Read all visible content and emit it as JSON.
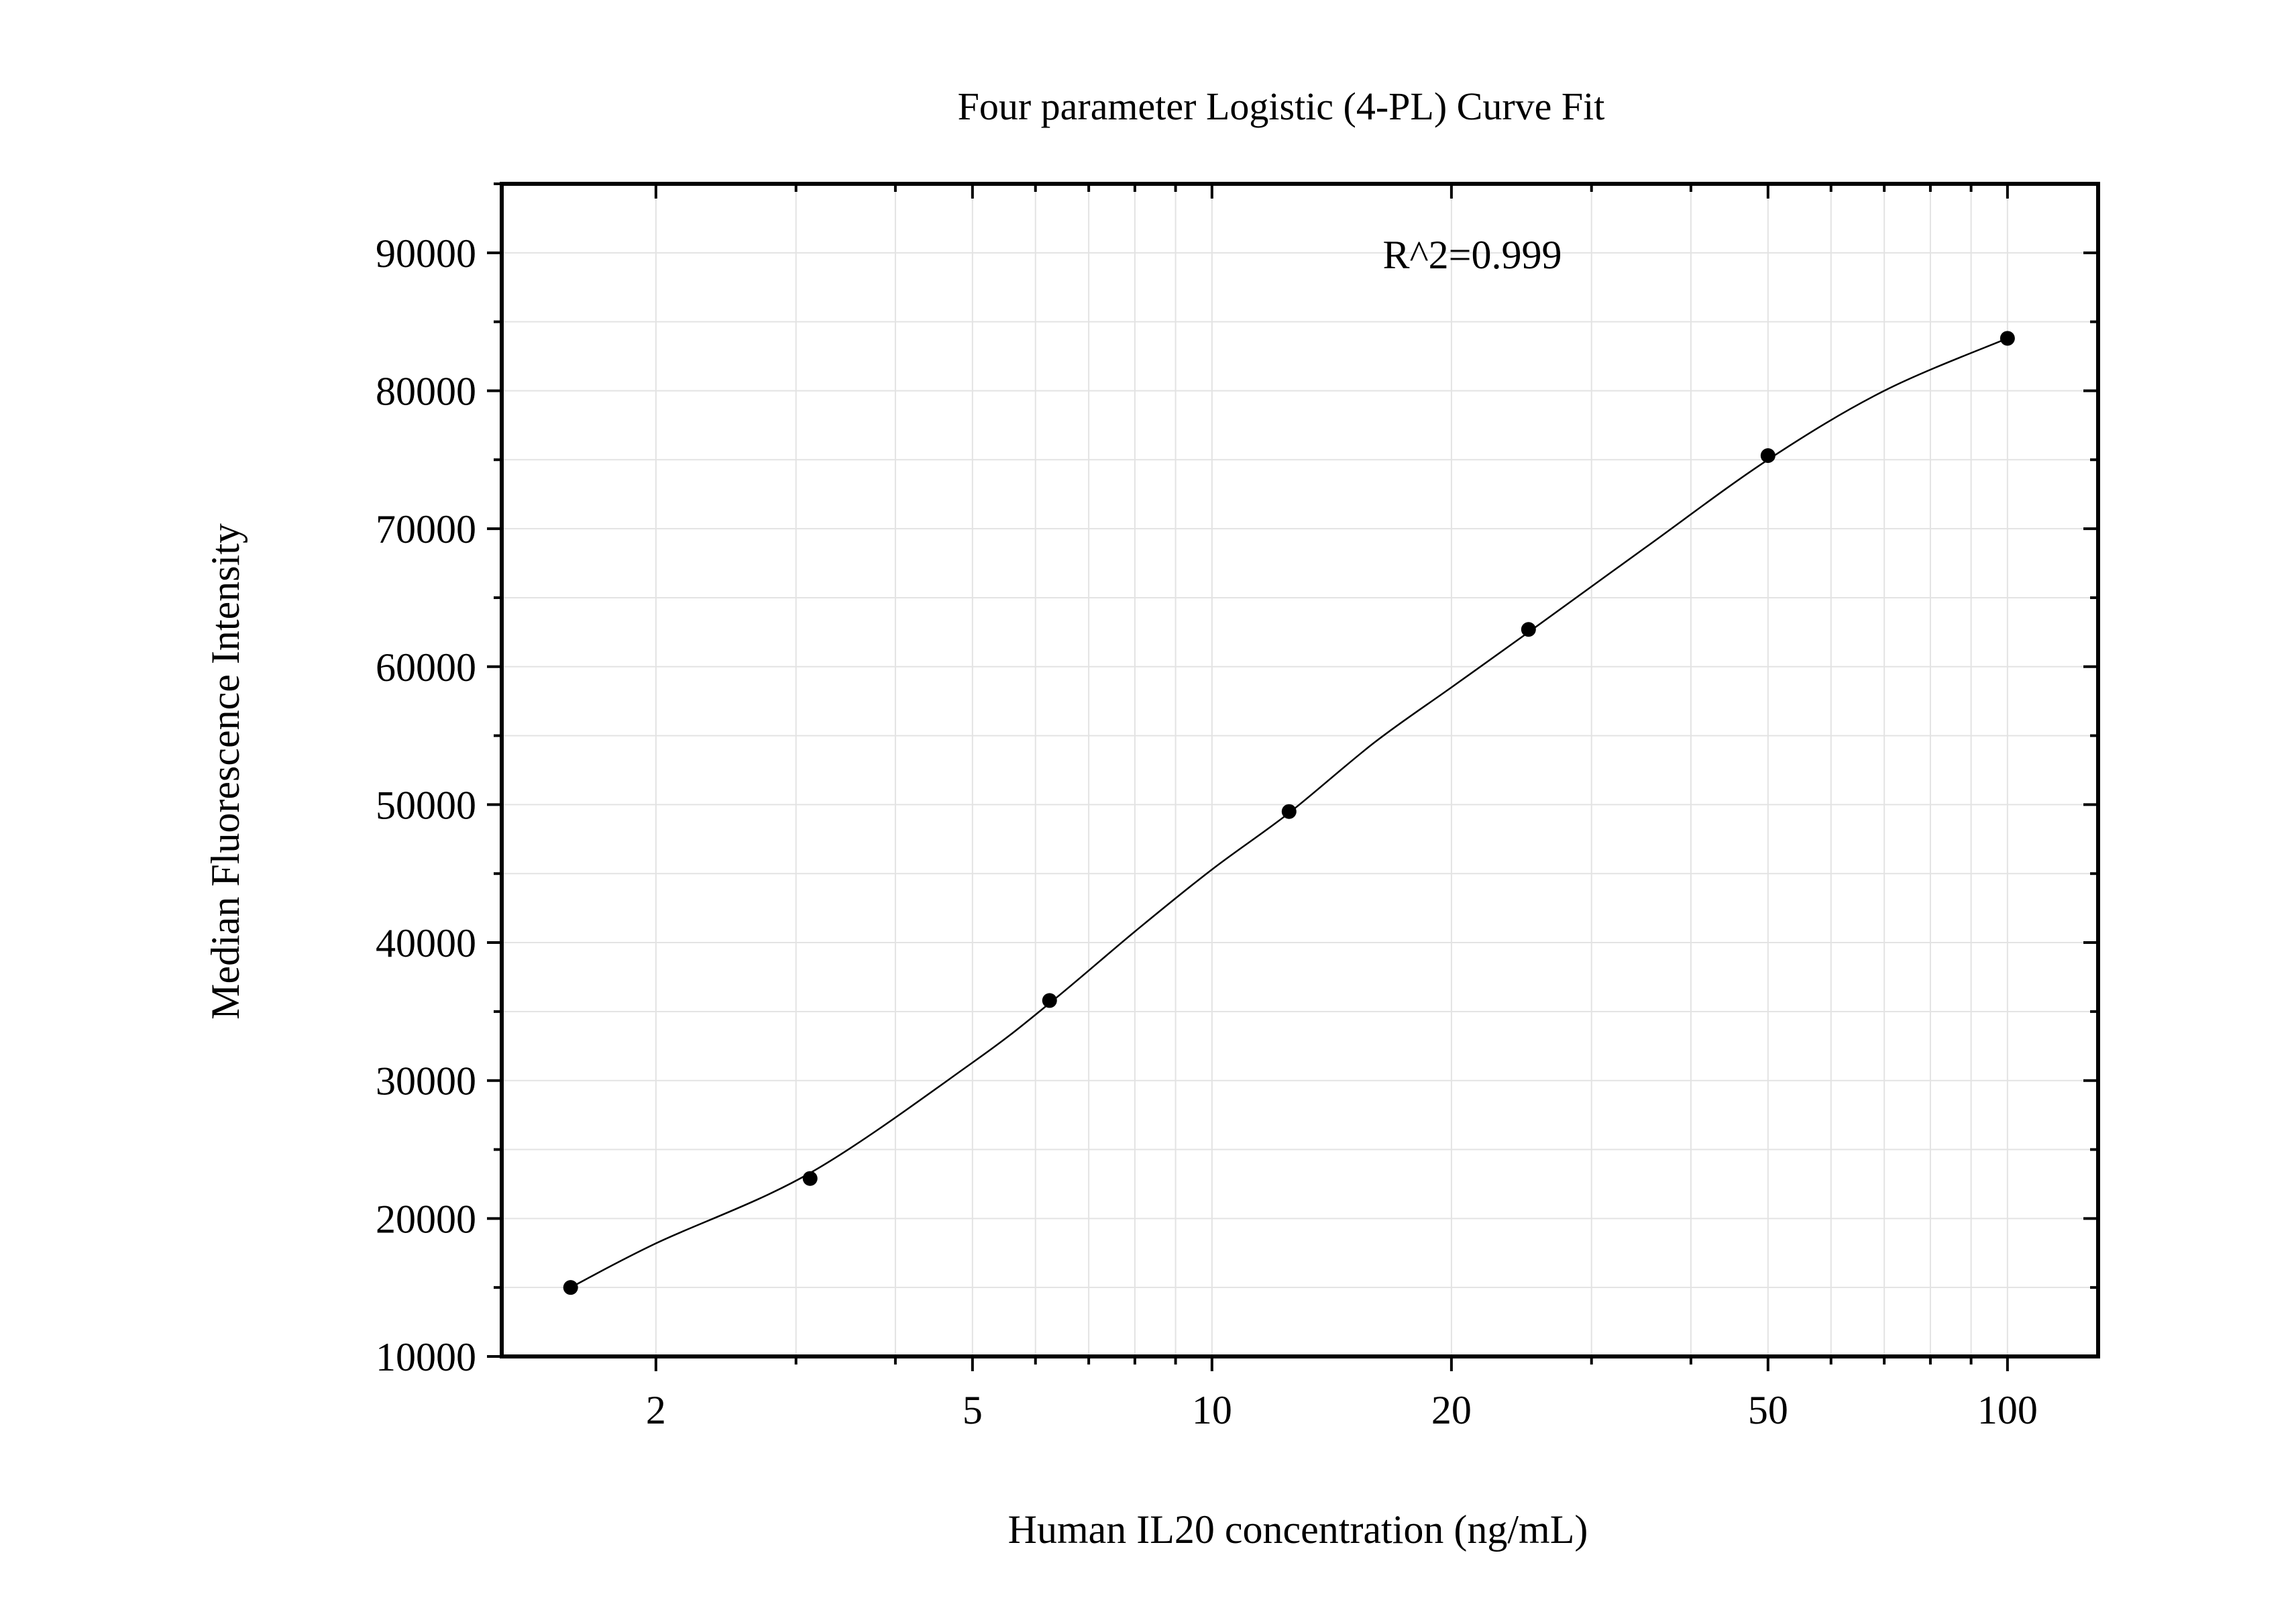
{
  "chart_data": {
    "type": "scatter",
    "title": "Four parameter Logistic (4-PL) Curve Fit",
    "xlabel": "Human IL20 concentration (ng/mL)",
    "ylabel": "Median Fluorescence Intensity",
    "annotation": "R^2=0.999",
    "x_scale": "log",
    "xlim": [
      1.28,
      130
    ],
    "ylim": [
      10000,
      95000
    ],
    "x_ticks": [
      2,
      5,
      10,
      20,
      50,
      100
    ],
    "x_tick_labels": [
      "2",
      "5",
      "10",
      "20",
      "50",
      "100"
    ],
    "y_ticks": [
      10000,
      20000,
      30000,
      40000,
      50000,
      60000,
      70000,
      80000,
      90000
    ],
    "y_tick_labels": [
      "10000",
      "20000",
      "30000",
      "40000",
      "50000",
      "60000",
      "70000",
      "80000",
      "90000"
    ],
    "grid": true,
    "series": [
      {
        "marker": "circle",
        "color": "#000000",
        "x": [
          1.5625,
          3.125,
          6.25,
          12.5,
          25,
          50,
          100
        ],
        "y": [
          15000,
          22900,
          35800,
          49500,
          62700,
          75300,
          83800
        ]
      }
    ],
    "fit_curve": {
      "model": "4PL",
      "color": "#000000",
      "x": [
        1.5625,
        2.0,
        3.125,
        5.0,
        6.25,
        8.0,
        10.0,
        12.5,
        16.0,
        20.0,
        25.0,
        35.0,
        50.0,
        70.0,
        100.0
      ],
      "y": [
        15000,
        18200,
        23300,
        31300,
        35600,
        40800,
        45300,
        49400,
        54500,
        58500,
        62500,
        68600,
        75000,
        80000,
        83800
      ]
    }
  }
}
